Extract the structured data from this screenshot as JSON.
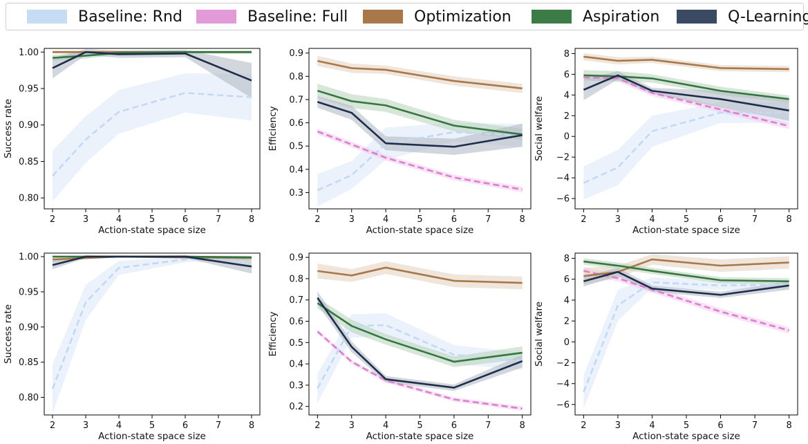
{
  "legend": {
    "entries": [
      {
        "name": "Baseline: Rnd",
        "color": "#c6dcf5"
      },
      {
        "name": "Baseline: Full",
        "color": "#e29ad8"
      },
      {
        "name": "Optimization",
        "color": "#a8784a"
      },
      {
        "name": "Aspiration",
        "color": "#3c7a46"
      },
      {
        "name": "Q-Learning",
        "color": "#3b4a63"
      }
    ]
  },
  "chart_data": [
    {
      "type": "line",
      "ylabel": "Success rate",
      "xlabel": "Action-state space size",
      "x": [
        2,
        3,
        4,
        6,
        8
      ],
      "ylim": [
        0.785,
        1.005
      ],
      "yticks": [
        0.8,
        0.85,
        0.9,
        0.95,
        1.0
      ],
      "series": [
        {
          "name": "Baseline: Rnd",
          "values": [
            0.83,
            0.88,
            0.918,
            0.944,
            0.938
          ],
          "band": [
            0.035,
            0.032,
            0.03,
            0.027,
            0.032
          ]
        },
        {
          "name": "Optimization",
          "values": [
            1.0,
            1.0,
            1.0,
            1.0,
            1.0
          ],
          "band": [
            0.002,
            0.002,
            0.002,
            0.002,
            0.002
          ]
        },
        {
          "name": "Aspiration",
          "values": [
            0.992,
            0.995,
            0.999,
            1.0,
            1.0
          ],
          "band": [
            0.004,
            0.004,
            0.003,
            0.002,
            0.002
          ]
        },
        {
          "name": "Q-Learning",
          "values": [
            0.978,
            1.0,
            0.997,
            0.998,
            0.961
          ],
          "band": [
            0.014,
            0.004,
            0.005,
            0.005,
            0.024
          ]
        }
      ]
    },
    {
      "type": "line",
      "ylabel": "Efficiency",
      "xlabel": "Action-state space size",
      "x": [
        2,
        3,
        4,
        6,
        8
      ],
      "ylim": [
        0.23,
        0.92
      ],
      "yticks": [
        0.3,
        0.4,
        0.5,
        0.6,
        0.7,
        0.8,
        0.9
      ],
      "series": [
        {
          "name": "Baseline: Rnd",
          "values": [
            0.31,
            0.375,
            0.51,
            0.56,
            0.545
          ],
          "band": [
            0.07,
            0.06,
            0.07,
            0.04,
            0.05
          ]
        },
        {
          "name": "Baseline: Full",
          "values": [
            0.563,
            0.507,
            0.45,
            0.365,
            0.313
          ],
          "band": [
            0.012,
            0.012,
            0.012,
            0.012,
            0.012
          ]
        },
        {
          "name": "Optimization",
          "values": [
            0.866,
            0.835,
            0.828,
            0.78,
            0.748
          ],
          "band": [
            0.022,
            0.02,
            0.018,
            0.02,
            0.02
          ]
        },
        {
          "name": "Aspiration",
          "values": [
            0.738,
            0.693,
            0.675,
            0.588,
            0.55
          ],
          "band": [
            0.03,
            0.03,
            0.028,
            0.025,
            0.025
          ]
        },
        {
          "name": "Q-Learning",
          "values": [
            0.69,
            0.643,
            0.512,
            0.497,
            0.547
          ],
          "band": [
            0.025,
            0.03,
            0.03,
            0.035,
            0.05
          ]
        }
      ]
    },
    {
      "type": "line",
      "ylabel": "Social welfare",
      "xlabel": "Action-state space size",
      "x": [
        2,
        3,
        4,
        6,
        8
      ],
      "ylim": [
        -7,
        8.5
      ],
      "yticks": [
        -6,
        -4,
        -2,
        0,
        2,
        4,
        6,
        8
      ],
      "series": [
        {
          "name": "Baseline: Rnd",
          "values": [
            -4.5,
            -3.0,
            0.5,
            2.3,
            2.3
          ],
          "band": [
            1.6,
            1.7,
            1.5,
            1.0,
            1.0
          ]
        },
        {
          "name": "Baseline: Full",
          "values": [
            5.7,
            5.6,
            4.2,
            2.6,
            1.0
          ],
          "band": [
            0.3,
            0.3,
            0.3,
            0.3,
            0.3
          ]
        },
        {
          "name": "Optimization",
          "values": [
            7.7,
            7.3,
            7.4,
            6.6,
            6.5
          ],
          "band": [
            0.35,
            0.35,
            0.3,
            0.3,
            0.3
          ]
        },
        {
          "name": "Aspiration",
          "values": [
            5.9,
            5.8,
            5.6,
            4.4,
            3.6
          ],
          "band": [
            0.5,
            0.5,
            0.4,
            0.4,
            0.35
          ]
        },
        {
          "name": "Q-Learning",
          "values": [
            4.5,
            5.9,
            4.4,
            3.6,
            2.5
          ],
          "band": [
            1.0,
            0.4,
            0.3,
            0.8,
            1.0
          ]
        }
      ]
    },
    {
      "type": "line",
      "ylabel": "Success rate",
      "xlabel": "Action-state space size",
      "x": [
        2,
        3,
        4,
        6,
        8
      ],
      "ylim": [
        0.775,
        1.005
      ],
      "yticks": [
        0.8,
        0.85,
        0.9,
        0.95,
        1.0
      ],
      "series": [
        {
          "name": "Baseline: Rnd",
          "values": [
            0.812,
            0.935,
            0.984,
            0.996,
            0.998
          ],
          "band": [
            0.035,
            0.025,
            0.01,
            0.004,
            0.003
          ]
        },
        {
          "name": "Optimization",
          "values": [
            0.996,
            0.998,
            1.0,
            0.999,
            0.998
          ],
          "band": [
            0.004,
            0.002,
            0.001,
            0.002,
            0.002
          ]
        },
        {
          "name": "Aspiration",
          "values": [
            1.0,
            1.0,
            1.0,
            1.0,
            0.999
          ],
          "band": [
            0.001,
            0.001,
            0.001,
            0.001,
            0.002
          ]
        },
        {
          "name": "Q-Learning",
          "values": [
            0.988,
            1.0,
            1.0,
            1.0,
            0.986
          ],
          "band": [
            0.006,
            0.002,
            0.001,
            0.002,
            0.01
          ]
        }
      ]
    },
    {
      "type": "line",
      "ylabel": "Efficiency",
      "xlabel": "Action-state space size",
      "x": [
        2,
        3,
        4,
        6,
        8
      ],
      "ylim": [
        0.16,
        0.92
      ],
      "yticks": [
        0.2,
        0.3,
        0.4,
        0.5,
        0.6,
        0.7,
        0.8,
        0.9
      ],
      "series": [
        {
          "name": "Baseline: Rnd",
          "values": [
            0.285,
            0.578,
            0.582,
            0.443,
            0.413
          ],
          "band": [
            0.07,
            0.055,
            0.055,
            0.045,
            0.04
          ]
        },
        {
          "name": "Baseline: Full",
          "values": [
            0.552,
            0.41,
            0.322,
            0.233,
            0.19
          ],
          "band": [
            0.01,
            0.01,
            0.01,
            0.01,
            0.01
          ]
        },
        {
          "name": "Optimization",
          "values": [
            0.836,
            0.815,
            0.852,
            0.79,
            0.78
          ],
          "band": [
            0.035,
            0.03,
            0.03,
            0.03,
            0.03
          ]
        },
        {
          "name": "Aspiration",
          "values": [
            0.685,
            0.578,
            0.515,
            0.41,
            0.452
          ],
          "band": [
            0.025,
            0.03,
            0.025,
            0.025,
            0.03
          ]
        },
        {
          "name": "Q-Learning",
          "values": [
            0.71,
            0.48,
            0.328,
            0.288,
            0.413
          ],
          "band": [
            0.03,
            0.025,
            0.015,
            0.015,
            0.03
          ]
        }
      ]
    },
    {
      "type": "line",
      "ylabel": "Social welfare",
      "xlabel": "Action-state space size",
      "x": [
        2,
        3,
        4,
        6,
        8
      ],
      "ylim": [
        -7,
        8.5
      ],
      "yticks": [
        -6,
        -4,
        -2,
        0,
        2,
        4,
        6,
        8
      ],
      "series": [
        {
          "name": "Baseline: Rnd",
          "values": [
            -4.8,
            3.5,
            5.7,
            5.4,
            5.5
          ],
          "band": [
            1.6,
            1.5,
            0.5,
            0.4,
            0.4
          ]
        },
        {
          "name": "Baseline: Full",
          "values": [
            6.8,
            6.1,
            5.0,
            2.9,
            1.1
          ],
          "band": [
            0.3,
            0.3,
            0.3,
            0.3,
            0.3
          ]
        },
        {
          "name": "Optimization",
          "values": [
            6.3,
            6.7,
            7.9,
            7.3,
            7.6
          ],
          "band": [
            0.8,
            0.6,
            0.5,
            0.6,
            0.6
          ]
        },
        {
          "name": "Aspiration",
          "values": [
            7.7,
            7.3,
            6.8,
            5.9,
            5.8
          ],
          "band": [
            0.3,
            0.3,
            0.3,
            0.3,
            0.3
          ]
        },
        {
          "name": "Q-Learning",
          "values": [
            5.8,
            6.7,
            5.1,
            4.5,
            5.4
          ],
          "band": [
            0.5,
            0.4,
            0.3,
            0.3,
            0.4
          ]
        }
      ]
    }
  ],
  "styles": {
    "Baseline: Rnd": {
      "line": "#c3d9f3",
      "band": "#dde9f8",
      "dash": true
    },
    "Baseline: Full": {
      "line": "#db7fcf",
      "band": "#f3cfee",
      "dash": true
    },
    "Optimization": {
      "line": "#a8784a",
      "band": "#e4d3c2",
      "dash": false
    },
    "Aspiration": {
      "line": "#35753f",
      "band": "#bcd6bf",
      "dash": false
    },
    "Q-Learning": {
      "line": "#1e2d4a",
      "band": "#b4bac6",
      "dash": false
    }
  }
}
